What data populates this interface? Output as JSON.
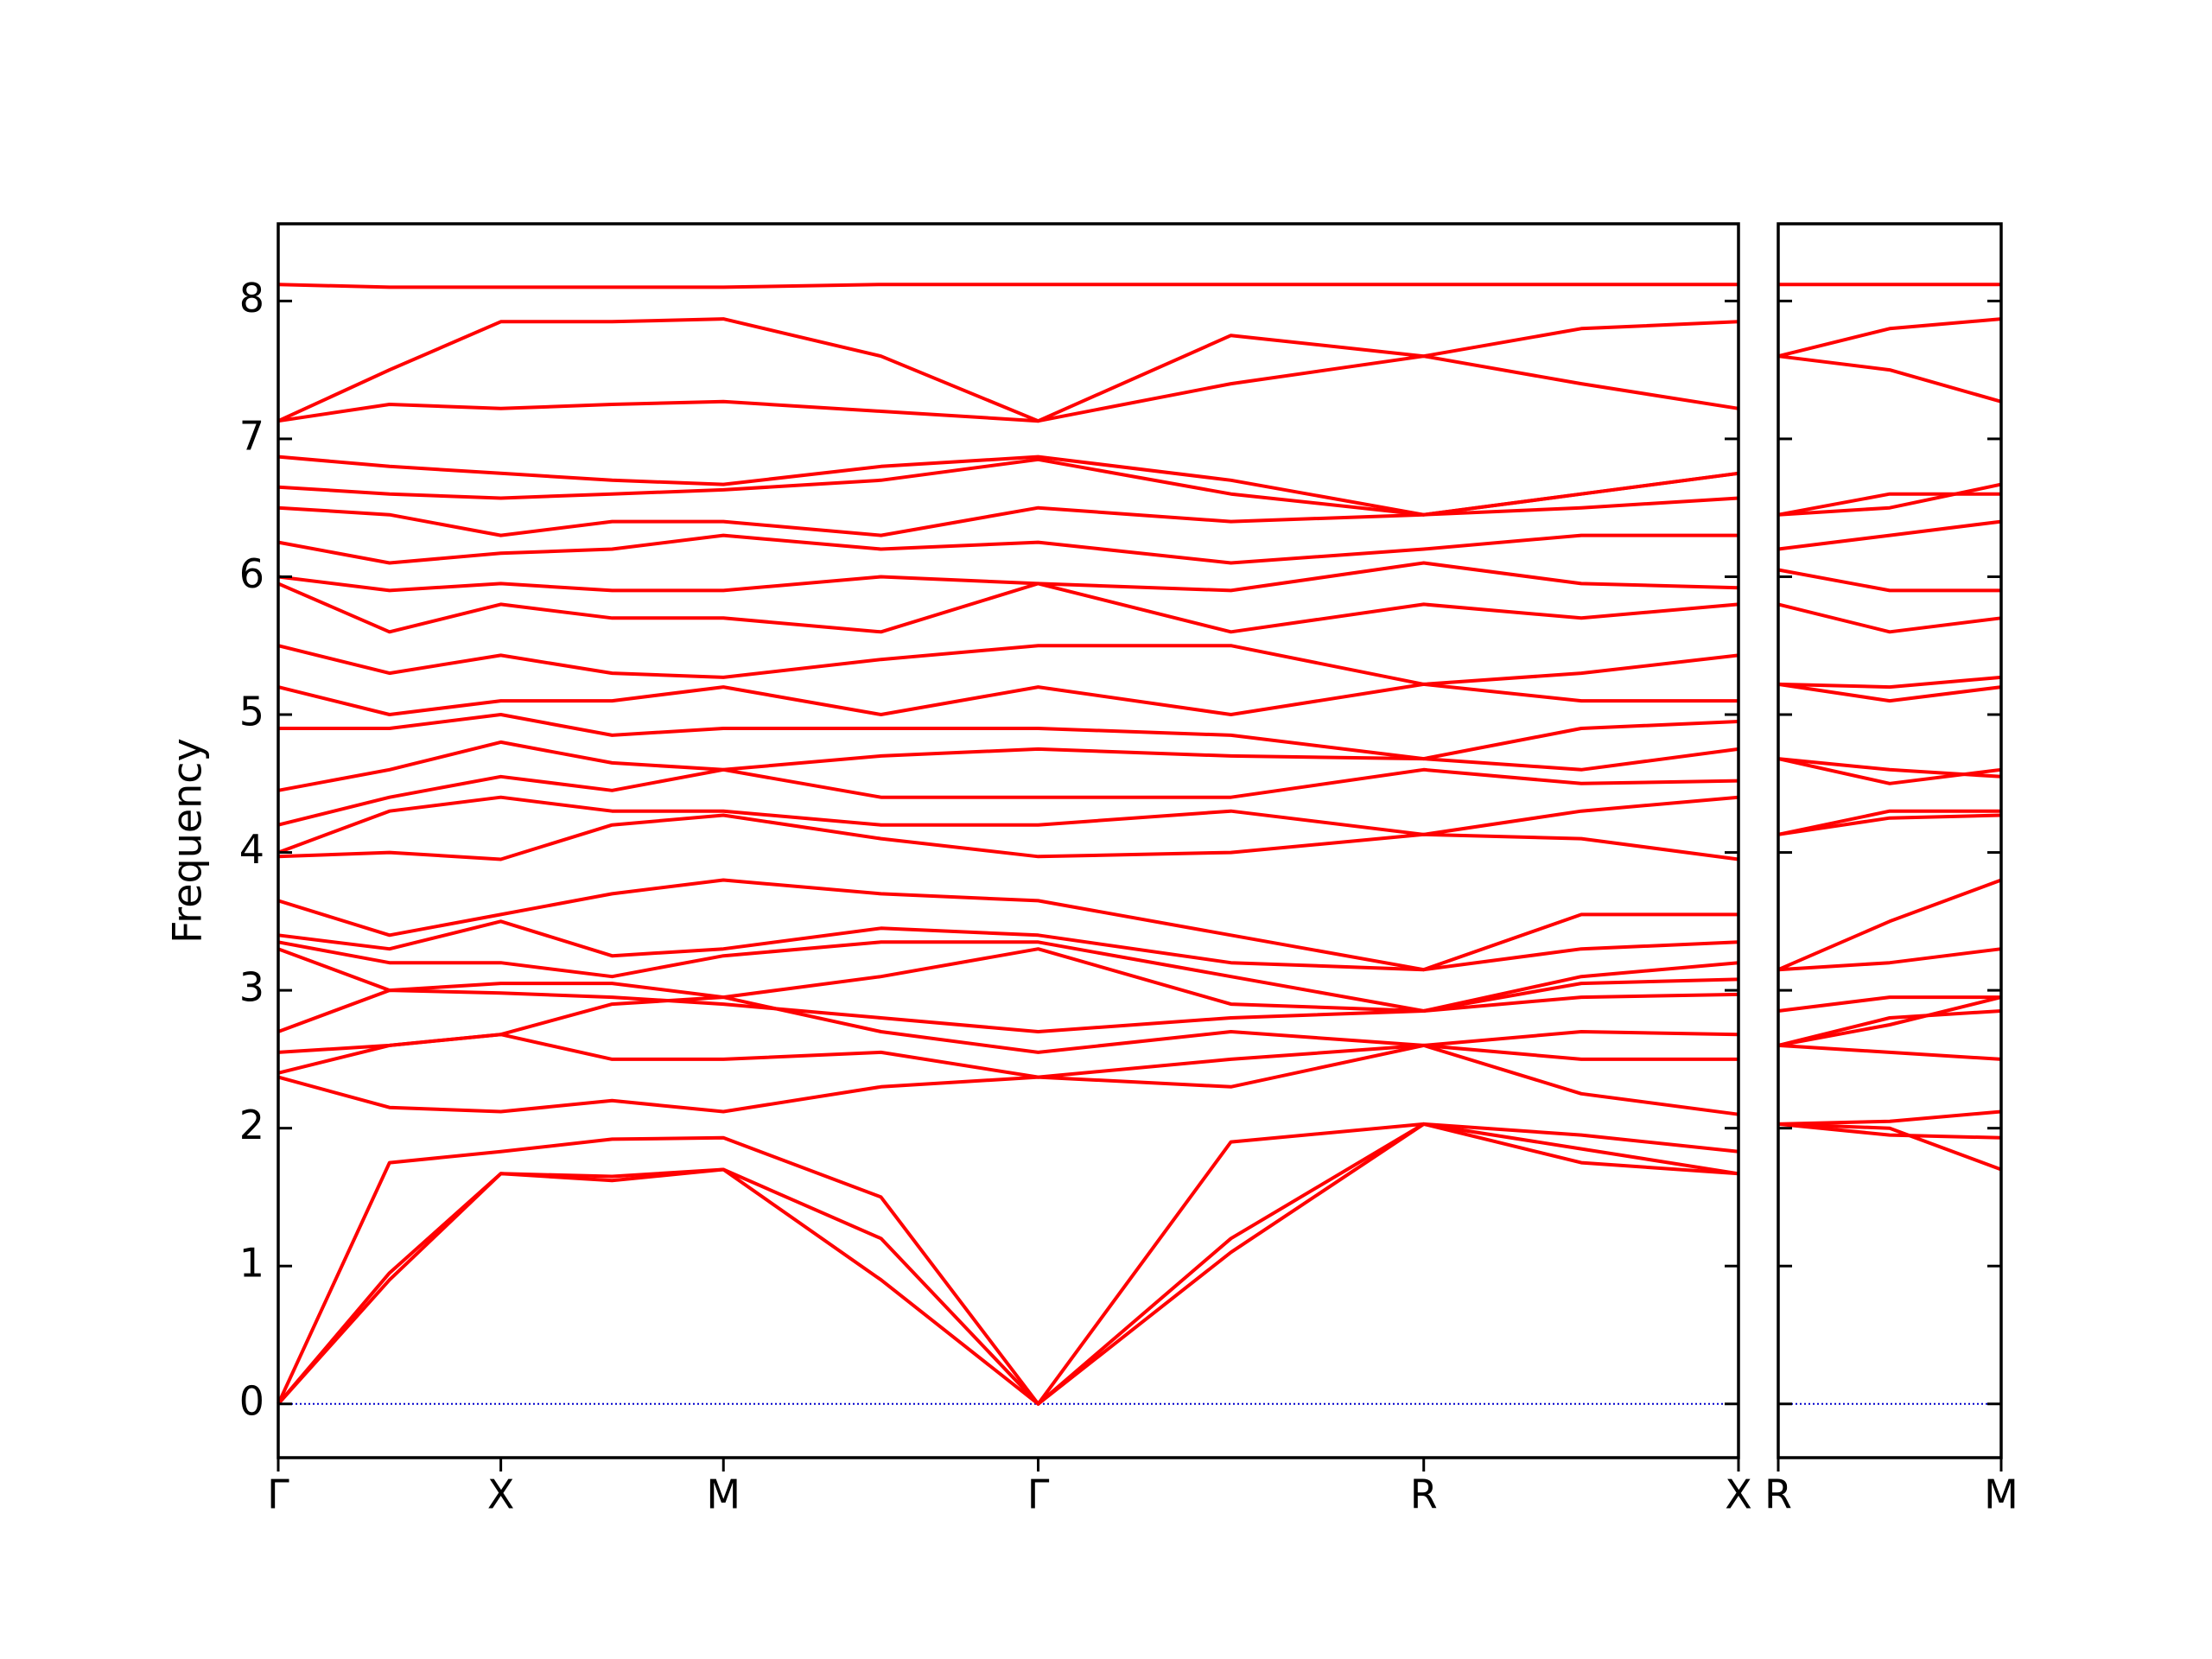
{
  "chart_data": [
    {
      "type": "line",
      "y_label": "Frequency",
      "color": "#ff0000",
      "zero_line": {
        "value": 0,
        "color": "#0000cc"
      },
      "x": [
        0,
        0.25,
        0.5,
        0.75,
        1.0,
        1.354,
        1.707,
        2.14,
        2.573,
        2.927,
        3.28
      ],
      "xlim": [
        0,
        3.28
      ],
      "xticks": [
        {
          "value": 0,
          "label": "Γ"
        },
        {
          "value": 0.5,
          "label": "X"
        },
        {
          "value": 1.0,
          "label": "M"
        },
        {
          "value": 1.707,
          "label": "Γ"
        },
        {
          "value": 2.573,
          "label": "R"
        },
        {
          "value": 3.28,
          "label": "X"
        }
      ],
      "ylim": [
        -0.39,
        8.56
      ],
      "yticks": [
        0,
        1,
        2,
        3,
        4,
        5,
        6,
        7,
        8
      ],
      "ytick_labels": true,
      "series": [
        {
          "values": [
            0,
            0.9,
            1.67,
            1.62,
            1.7,
            0.9,
            0,
            1.1,
            2.03,
            1.75,
            1.67
          ]
        },
        {
          "values": [
            0,
            0.95,
            1.67,
            1.65,
            1.7,
            1.2,
            0,
            1.2,
            2.03,
            1.85,
            1.67
          ]
        },
        {
          "values": [
            0,
            1.75,
            1.83,
            1.92,
            1.93,
            1.5,
            0,
            1.9,
            2.03,
            1.95,
            1.83
          ]
        },
        {
          "values": [
            2.37,
            2.15,
            2.12,
            2.2,
            2.12,
            2.3,
            2.37,
            2.3,
            2.6,
            2.25,
            2.1
          ]
        },
        {
          "values": [
            2.4,
            2.6,
            2.68,
            2.5,
            2.5,
            2.55,
            2.37,
            2.5,
            2.6,
            2.5,
            2.5
          ]
        },
        {
          "values": [
            2.55,
            2.6,
            2.68,
            2.9,
            2.95,
            2.7,
            2.55,
            2.7,
            2.6,
            2.7,
            2.68
          ]
        },
        {
          "values": [
            2.7,
            3.0,
            2.98,
            2.95,
            2.9,
            2.8,
            2.7,
            2.8,
            2.85,
            2.95,
            2.97
          ]
        },
        {
          "values": [
            3.3,
            3.0,
            3.05,
            3.05,
            2.95,
            3.1,
            3.3,
            2.9,
            2.85,
            3.05,
            3.08
          ]
        },
        {
          "values": [
            3.35,
            3.2,
            3.2,
            3.1,
            3.25,
            3.35,
            3.35,
            3.1,
            2.85,
            3.1,
            3.2
          ]
        },
        {
          "values": [
            3.4,
            3.3,
            3.5,
            3.25,
            3.3,
            3.45,
            3.4,
            3.2,
            3.15,
            3.3,
            3.35
          ]
        },
        {
          "values": [
            3.65,
            3.4,
            3.55,
            3.7,
            3.8,
            3.7,
            3.65,
            3.4,
            3.15,
            3.55,
            3.55
          ]
        },
        {
          "values": [
            3.97,
            4.0,
            3.95,
            4.2,
            4.27,
            4.1,
            3.97,
            4.0,
            4.13,
            4.1,
            3.95
          ]
        },
        {
          "values": [
            4.0,
            4.3,
            4.4,
            4.3,
            4.3,
            4.2,
            4.2,
            4.3,
            4.13,
            4.3,
            4.4
          ]
        },
        {
          "values": [
            4.2,
            4.4,
            4.55,
            4.45,
            4.6,
            4.4,
            4.4,
            4.4,
            4.6,
            4.5,
            4.52
          ]
        },
        {
          "values": [
            4.45,
            4.6,
            4.8,
            4.65,
            4.6,
            4.7,
            4.75,
            4.7,
            4.68,
            4.6,
            4.75
          ]
        },
        {
          "values": [
            4.9,
            4.9,
            5.0,
            4.85,
            4.9,
            4.9,
            4.9,
            4.85,
            4.68,
            4.9,
            4.95
          ]
        },
        {
          "values": [
            5.2,
            5.0,
            5.1,
            5.1,
            5.2,
            5.0,
            5.2,
            5.0,
            5.22,
            5.1,
            5.1
          ]
        },
        {
          "values": [
            5.5,
            5.3,
            5.43,
            5.3,
            5.27,
            5.4,
            5.5,
            5.5,
            5.22,
            5.3,
            5.43
          ]
        },
        {
          "values": [
            5.95,
            5.6,
            5.8,
            5.7,
            5.7,
            5.6,
            5.95,
            5.6,
            5.8,
            5.7,
            5.8
          ]
        },
        {
          "values": [
            6.0,
            5.9,
            5.95,
            5.9,
            5.9,
            6.0,
            5.95,
            5.9,
            6.1,
            5.95,
            5.92
          ]
        },
        {
          "values": [
            6.25,
            6.1,
            6.17,
            6.2,
            6.3,
            6.2,
            6.25,
            6.1,
            6.2,
            6.3,
            6.3
          ]
        },
        {
          "values": [
            6.5,
            6.45,
            6.3,
            6.4,
            6.4,
            6.3,
            6.5,
            6.4,
            6.45,
            6.5,
            6.57
          ]
        },
        {
          "values": [
            6.65,
            6.6,
            6.57,
            6.6,
            6.63,
            6.7,
            6.85,
            6.6,
            6.45,
            6.6,
            6.75
          ]
        },
        {
          "values": [
            6.87,
            6.8,
            6.75,
            6.7,
            6.67,
            6.8,
            6.87,
            6.7,
            6.45,
            6.6,
            6.75
          ]
        },
        {
          "values": [
            7.13,
            7.25,
            7.22,
            7.25,
            7.27,
            7.2,
            7.13,
            7.4,
            7.6,
            7.4,
            7.22
          ]
        },
        {
          "values": [
            7.13,
            7.5,
            7.85,
            7.85,
            7.87,
            7.6,
            7.13,
            7.75,
            7.6,
            7.8,
            7.85
          ]
        },
        {
          "values": [
            8.12,
            8.1,
            8.1,
            8.1,
            8.1,
            8.12,
            8.12,
            8.12,
            8.12,
            8.12,
            8.12
          ]
        }
      ]
    },
    {
      "type": "line",
      "color": "#ff0000",
      "zero_line": {
        "value": 0,
        "color": "#0000cc"
      },
      "x": [
        0,
        0.25,
        0.5
      ],
      "xlim": [
        0,
        0.5
      ],
      "xticks": [
        {
          "value": 0,
          "label": "R"
        },
        {
          "value": 0.5,
          "label": "M"
        }
      ],
      "ylim": [
        -0.39,
        8.56
      ],
      "yticks": [
        0,
        1,
        2,
        3,
        4,
        5,
        6,
        7,
        8
      ],
      "ytick_labels": false,
      "series": [
        {
          "values": [
            2.03,
            2.0,
            1.7
          ]
        },
        {
          "values": [
            2.03,
            1.95,
            1.93
          ]
        },
        {
          "values": [
            2.03,
            2.05,
            2.12
          ]
        },
        {
          "values": [
            2.6,
            2.55,
            2.5
          ]
        },
        {
          "values": [
            2.6,
            2.75,
            2.95
          ]
        },
        {
          "values": [
            2.6,
            2.8,
            2.85
          ]
        },
        {
          "values": [
            2.85,
            2.95,
            2.95
          ]
        },
        {
          "values": [
            3.15,
            3.2,
            3.3
          ]
        },
        {
          "values": [
            3.15,
            3.5,
            3.8
          ]
        },
        {
          "values": [
            4.13,
            4.25,
            4.27
          ]
        },
        {
          "values": [
            4.13,
            4.3,
            4.3
          ]
        },
        {
          "values": [
            4.68,
            4.5,
            4.6
          ]
        },
        {
          "values": [
            4.68,
            4.6,
            4.55
          ]
        },
        {
          "values": [
            5.22,
            5.1,
            5.2
          ]
        },
        {
          "values": [
            5.22,
            5.2,
            5.27
          ]
        },
        {
          "values": [
            5.8,
            5.6,
            5.7
          ]
        },
        {
          "values": [
            6.05,
            5.9,
            5.9
          ]
        },
        {
          "values": [
            6.2,
            6.3,
            6.4
          ]
        },
        {
          "values": [
            6.45,
            6.5,
            6.67
          ]
        },
        {
          "values": [
            6.45,
            6.6,
            6.6
          ]
        },
        {
          "values": [
            7.6,
            7.5,
            7.27
          ]
        },
        {
          "values": [
            7.6,
            7.8,
            7.87
          ]
        },
        {
          "values": [
            8.12,
            8.12,
            8.12
          ]
        }
      ]
    }
  ]
}
